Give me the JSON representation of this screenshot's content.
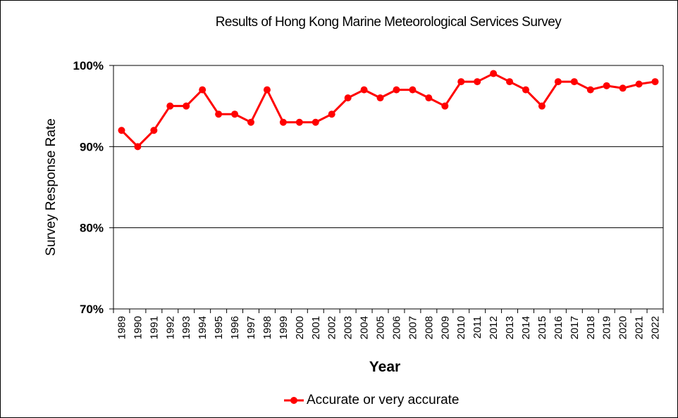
{
  "chart_data": {
    "type": "line",
    "title": "Results of Hong Kong Marine Meteorological Services Survey",
    "xlabel": "Year",
    "ylabel": "Survey Response Rate",
    "ylim": [
      70,
      100
    ],
    "yticks": [
      70,
      80,
      90,
      100
    ],
    "ytick_labels": [
      "70%",
      "80%",
      "90%",
      "100%"
    ],
    "grid": "horizontal",
    "legend_position": "bottom",
    "categories": [
      "1989",
      "1990",
      "1991",
      "1992",
      "1993",
      "1994",
      "1995",
      "1996",
      "1997",
      "1998",
      "1999",
      "2000",
      "2001",
      "2002",
      "2003",
      "2004",
      "2005",
      "2006",
      "2007",
      "2008",
      "2009",
      "2010",
      "2011",
      "2012",
      "2013",
      "2014",
      "2015",
      "2016",
      "2017",
      "2018",
      "2019",
      "2020",
      "2021",
      "2022"
    ],
    "series": [
      {
        "name": "Accurate or very accurate",
        "color": "#ff0000",
        "values": [
          92,
          90,
          92,
          95,
          95,
          97,
          94,
          94,
          93,
          97,
          93,
          93,
          93,
          94,
          96,
          97,
          96,
          97,
          97,
          96,
          95,
          98,
          98,
          99,
          98,
          97,
          95,
          98,
          98,
          97,
          97.5,
          97.2,
          97.7,
          98
        ]
      }
    ]
  }
}
